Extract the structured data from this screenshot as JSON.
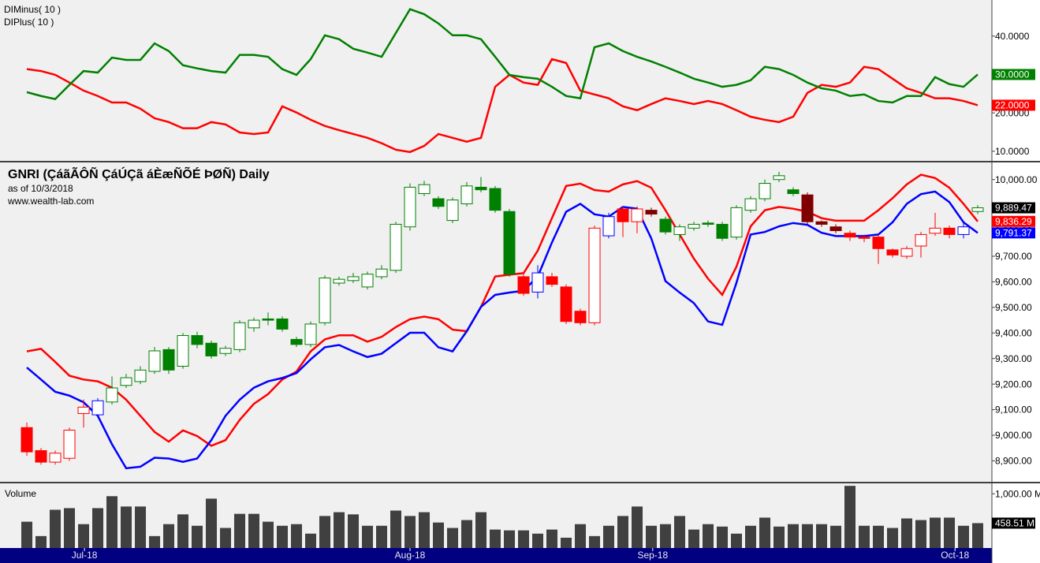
{
  "chart_data": [
    {
      "type": "line",
      "xlim": [
        -1.89,
        68
      ],
      "ylim": [
        7.3,
        49.4
      ],
      "yticks": [
        {
          "value": 10,
          "label": "10.0000"
        },
        {
          "value": 20,
          "label": "20.0000"
        },
        {
          "value": 30,
          "label": "30.0000"
        },
        {
          "value": 40,
          "label": "40.0000"
        }
      ],
      "series": [
        {
          "name": "DIMinus( 10 )",
          "color": "#ff0000",
          "last_value": {
            "value": 22,
            "label": "22.0000"
          },
          "values": [
            31.4,
            30.9,
            29.9,
            27.9,
            25.8,
            24.4,
            22.7,
            22.7,
            21.1,
            18.6,
            17.6,
            16.0,
            16.0,
            17.6,
            17.0,
            14.9,
            14.5,
            14.9,
            21.7,
            20.1,
            18.2,
            16.6,
            15.5,
            14.5,
            13.5,
            12.1,
            10.4,
            9.8,
            11.4,
            14.5,
            13.5,
            12.5,
            13.5,
            26.8,
            29.9,
            27.9,
            27.3,
            34.0,
            33.0,
            25.8,
            24.8,
            23.8,
            21.7,
            20.7,
            22.3,
            23.8,
            23.1,
            22.3,
            23.1,
            22.3,
            20.7,
            19.0,
            18.2,
            17.6,
            19.0,
            25.2,
            27.3,
            26.8,
            27.9,
            32.0,
            31.4,
            28.9,
            26.4,
            25.2,
            23.8,
            23.8,
            23.1,
            22
          ]
        },
        {
          "name": "DIPlus( 10 )",
          "color": "#008000",
          "last_value": {
            "value": 30,
            "label": "30.0000"
          },
          "values": [
            25.4,
            24.4,
            23.6,
            27.3,
            30.9,
            30.5,
            34.4,
            33.8,
            33.8,
            38.1,
            36.1,
            32.4,
            31.6,
            30.9,
            30.5,
            35.1,
            35.1,
            34.6,
            31.4,
            29.9,
            34.0,
            40.2,
            39.2,
            36.7,
            35.7,
            34.6,
            40.8,
            47.0,
            45.7,
            43.3,
            40.2,
            40.2,
            39.2,
            34.6,
            29.9,
            29.3,
            28.9,
            26.8,
            24.4,
            23.8,
            37.1,
            38.1,
            36.1,
            34.6,
            33.4,
            32.0,
            30.5,
            28.9,
            27.9,
            26.8,
            27.3,
            28.5,
            32.0,
            31.4,
            29.9,
            27.9,
            26.4,
            25.8,
            24.4,
            24.8,
            23.1,
            22.7,
            24.4,
            24.4,
            29.3,
            27.5,
            26.8,
            30
          ]
        }
      ]
    },
    {
      "type": "candlestick",
      "title": "GNRI (ÇáãÃÔÑ ÇáÚÇã áÈæÑÕÉ ÞØÑ) Daily",
      "subtitle": "as of 10/3/2018",
      "source": "www.wealth-lab.com",
      "xlim": [
        -1.89,
        68
      ],
      "ylim": [
        8815,
        10070
      ],
      "yticks": [
        {
          "value": 8900,
          "label": "8,900.00"
        },
        {
          "value": 9000,
          "label": "9,000.00"
        },
        {
          "value": 9100,
          "label": "9,100.00"
        },
        {
          "value": 9200,
          "label": "9,200.00"
        },
        {
          "value": 9300,
          "label": "9,300.00"
        },
        {
          "value": 9400,
          "label": "9,400.00"
        },
        {
          "value": 9500,
          "label": "9,500.00"
        },
        {
          "value": 9600,
          "label": "9,600.00"
        },
        {
          "value": 9700,
          "label": "9,700.00"
        },
        {
          "value": 9800,
          "label": "9,800.00"
        },
        {
          "value": 10000,
          "label": "10,000.00"
        }
      ],
      "open": [
        9030,
        8940,
        8895,
        8910,
        9085,
        9080,
        9130,
        9195,
        9210,
        9250,
        9335,
        9270,
        9390,
        9360,
        9320,
        9335,
        9420,
        9455,
        9455,
        9375,
        9355,
        9440,
        9595,
        9605,
        9580,
        9620,
        9645,
        9815,
        9945,
        9925,
        9840,
        9905,
        9970,
        9965,
        9875,
        9620,
        9560,
        9620,
        9580,
        9485,
        9440,
        9780,
        9885,
        9835,
        9880,
        9845,
        9785,
        9810,
        9830,
        9825,
        9775,
        9880,
        9925,
        10000,
        9960,
        9940,
        9835,
        9815,
        9790,
        9775,
        9775,
        9725,
        9700,
        9740,
        9790,
        9810,
        9785,
        9875
      ],
      "high": [
        9050,
        8950,
        8940,
        9030,
        9140,
        9145,
        9230,
        9240,
        9270,
        9345,
        9345,
        9400,
        9405,
        9370,
        9350,
        9450,
        9460,
        9480,
        9465,
        9385,
        9445,
        9625,
        9620,
        9635,
        9640,
        9665,
        9835,
        9985,
        9995,
        9935,
        9930,
        9990,
        10010,
        9975,
        9885,
        9630,
        9665,
        9635,
        9590,
        9495,
        9820,
        9870,
        9895,
        9895,
        9890,
        9855,
        9825,
        9835,
        9840,
        9835,
        9900,
        9935,
        10000,
        10030,
        9970,
        9950,
        9840,
        9825,
        9800,
        9785,
        9785,
        9730,
        9740,
        9795,
        9870,
        9820,
        9830,
        9900
      ],
      "low": [
        8920,
        8885,
        8885,
        8900,
        9030,
        9070,
        9120,
        9185,
        9200,
        9240,
        9240,
        9260,
        9340,
        9300,
        9310,
        9325,
        9405,
        9430,
        9405,
        9345,
        9345,
        9430,
        9585,
        9595,
        9570,
        9610,
        9635,
        9800,
        9935,
        9885,
        9830,
        9895,
        9950,
        9870,
        9620,
        9545,
        9535,
        9580,
        9435,
        9430,
        9430,
        9770,
        9775,
        9790,
        9855,
        9785,
        9760,
        9800,
        9815,
        9760,
        9765,
        9870,
        9915,
        9990,
        9935,
        9825,
        9815,
        9790,
        9760,
        9755,
        9670,
        9695,
        9690,
        9695,
        9780,
        9770,
        9770,
        9865
      ],
      "close": [
        8935,
        8895,
        8930,
        9020,
        9110,
        9135,
        9185,
        9225,
        9255,
        9330,
        9255,
        9390,
        9355,
        9310,
        9340,
        9440,
        9450,
        9450,
        9415,
        9355,
        9435,
        9615,
        9610,
        9620,
        9630,
        9650,
        9825,
        9970,
        9980,
        9895,
        9920,
        9975,
        9960,
        9880,
        9630,
        9555,
        9635,
        9590,
        9445,
        9440,
        9810,
        9855,
        9835,
        9885,
        9865,
        9795,
        9815,
        9825,
        9825,
        9770,
        9890,
        9925,
        9985,
        10015,
        9945,
        9835,
        9825,
        9800,
        9775,
        9770,
        9730,
        9705,
        9730,
        9785,
        9810,
        9785,
        9815,
        9889.47
      ],
      "colors": [
        "#ff0000",
        "#ff0000",
        "#ff0000",
        "#ff0000",
        "#ff0000",
        "#0000ff",
        "#008000",
        "#008000",
        "#008000",
        "#008000",
        "#008000",
        "#008000",
        "#008000",
        "#008000",
        "#008000",
        "#008000",
        "#008000",
        "#008000",
        "#008000",
        "#008000",
        "#008000",
        "#008000",
        "#008000",
        "#008000",
        "#008000",
        "#008000",
        "#008000",
        "#008000",
        "#008000",
        "#008000",
        "#008000",
        "#008000",
        "#008000",
        "#008000",
        "#008000",
        "#ff0000",
        "#0000ff",
        "#ff0000",
        "#ff0000",
        "#ff0000",
        "#ff0000",
        "#0000ff",
        "#ff0000",
        "#ff0000",
        "#800000",
        "#008000",
        "#008000",
        "#008000",
        "#008000",
        "#008000",
        "#008000",
        "#008000",
        "#008000",
        "#008000",
        "#008000",
        "#800000",
        "#800000",
        "#800000",
        "#ff0000",
        "#ff0000",
        "#ff0000",
        "#ff0000",
        "#ff0000",
        "#ff0000",
        "#ff0000",
        "#ff0000",
        "#0000ff",
        "#008000"
      ],
      "last_value": {
        "value": 9889.47,
        "label": "9,889.47"
      },
      "series": [
        {
          "color": "#ff0000",
          "last_value": {
            "value": 9836.29,
            "label": "9,836.29"
          },
          "values": [
            9328,
            9338,
            9287,
            9233,
            9218,
            9211,
            9186,
            9139,
            9076,
            9013,
            8975,
            9019,
            8997,
            8959,
            8981,
            9060,
            9123,
            9161,
            9218,
            9249,
            9328,
            9375,
            9391,
            9391,
            9366,
            9385,
            9423,
            9454,
            9464,
            9454,
            9413,
            9407,
            9502,
            9621,
            9628,
            9634,
            9722,
            9849,
            9975,
            9984,
            9959,
            9953,
            9981,
            9994,
            9968,
            9880,
            9785,
            9691,
            9612,
            9549,
            9659,
            9817,
            9880,
            9893,
            9886,
            9874,
            9849,
            9839,
            9839,
            9839,
            9880,
            9927,
            9981,
            10019,
            10006,
            9968,
            9905,
            9836.29
          ]
        },
        {
          "color": "#0000ff",
          "last_value": {
            "value": 9791.37,
            "label": "9,791.37"
          },
          "values": [
            9265,
            9218,
            9170,
            9155,
            9129,
            9076,
            8965,
            8871,
            8877,
            8912,
            8909,
            8896,
            8909,
            8981,
            9076,
            9139,
            9186,
            9211,
            9224,
            9243,
            9297,
            9344,
            9353,
            9328,
            9306,
            9319,
            9360,
            9401,
            9401,
            9344,
            9328,
            9407,
            9502,
            9549,
            9558,
            9565,
            9621,
            9754,
            9874,
            9905,
            9864,
            9855,
            9893,
            9886,
            9770,
            9603,
            9558,
            9517,
            9445,
            9432,
            9596,
            9785,
            9795,
            9817,
            9830,
            9823,
            9792,
            9779,
            9779,
            9779,
            9785,
            9833,
            9905,
            9943,
            9953,
            9912,
            9833,
            9791.37
          ]
        }
      ]
    },
    {
      "type": "bar",
      "title": "Volume",
      "color": "#404040",
      "xlim": [
        -1.89,
        68
      ],
      "ylim": [
        0,
        1206
      ],
      "yticks": [
        {
          "value": 1000,
          "label": "1,000.00 M"
        }
      ],
      "values": [
        485,
        220,
        705,
        735,
        440,
        735,
        955,
        765,
        765,
        220,
        440,
        620,
        410,
        910,
        370,
        630,
        630,
        485,
        410,
        440,
        265,
        590,
        660,
        620,
        410,
        410,
        690,
        590,
        660,
        470,
        370,
        515,
        660,
        340,
        325,
        325,
        265,
        340,
        190,
        440,
        220,
        410,
        590,
        765,
        410,
        440,
        590,
        340,
        440,
        395,
        265,
        410,
        560,
        395,
        440,
        440,
        440,
        410,
        1145,
        410,
        410,
        370,
        545,
        515,
        560,
        560,
        410,
        458.51
      ],
      "last_value": {
        "value": 458.51,
        "label": "458.51 M"
      },
      "xticks": [
        {
          "value": 4.06,
          "label": "Jul-18"
        },
        {
          "value": 27,
          "label": "Aug-18"
        },
        {
          "value": 44.1,
          "label": "Sep-18"
        },
        {
          "value": 65.4,
          "label": "Oct-18"
        }
      ]
    }
  ]
}
